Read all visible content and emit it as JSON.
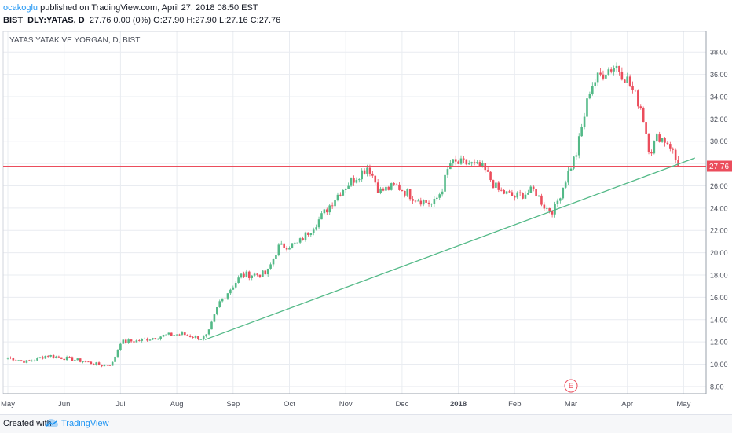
{
  "header": {
    "author": "ocakoglu",
    "published_text": "published on TradingView.com, April 27, 2018 08:50 EST",
    "symbol": "BIST_DLY:YATAS, D",
    "ohlc_text": "27.76 0.00 (0%) O:27.90 H:27.90 L:27.16 C:27.76"
  },
  "chart_label": "YATAS YATAK VE YORGAN, D, BIST",
  "price_tag": "27.76",
  "earnings_marker": "E",
  "footer": {
    "created_with": "Created with",
    "brand": "TradingView"
  },
  "colors": {
    "up": "#53b987",
    "down": "#eb4d5c",
    "trendline": "#53b987",
    "last_price": "#eb4d5c",
    "grid": "#e9ecf1"
  },
  "chart_data": {
    "type": "candlestick",
    "y_ticks": [
      8,
      10,
      12,
      14,
      16,
      18,
      20,
      22,
      24,
      26,
      28,
      30,
      32,
      34,
      36,
      38
    ],
    "y_tick_labels": [
      "8.00",
      "10.00",
      "12.00",
      "14.00",
      "16.00",
      "18.00",
      "20.00",
      "22.00",
      "24.00",
      "26.00",
      "28.00",
      "30.00",
      "32.00",
      "34.00",
      "36.00",
      "38.00"
    ],
    "ylim": [
      7.5,
      39
    ],
    "x_ticks": [
      "May",
      "Jun",
      "Jul",
      "Aug",
      "Sep",
      "Oct",
      "Nov",
      "Dec",
      "2018",
      "Feb",
      "Mar",
      "Apr",
      "May"
    ],
    "last_price": 27.76,
    "grid": true,
    "series": [
      {
        "name": "BIST_DLY:YATAS",
        "anchors": [
          {
            "month": 0,
            "close": 10.6
          },
          {
            "month": 0.35,
            "close": 10.2
          },
          {
            "month": 0.7,
            "close": 10.8
          },
          {
            "month": 1.3,
            "close": 10.3
          },
          {
            "month": 1.65,
            "close": 9.9
          },
          {
            "month": 1.85,
            "close": 10.0
          },
          {
            "month": 2.0,
            "close": 12.0
          },
          {
            "month": 2.3,
            "close": 12.1
          },
          {
            "month": 2.8,
            "close": 12.6
          },
          {
            "month": 3.1,
            "close": 12.7
          },
          {
            "month": 3.45,
            "close": 12.3
          },
          {
            "month": 3.55,
            "close": 12.6
          },
          {
            "month": 3.75,
            "close": 15.5
          },
          {
            "month": 4.15,
            "close": 18.0
          },
          {
            "month": 4.6,
            "close": 18.1
          },
          {
            "month": 4.8,
            "close": 20.5
          },
          {
            "month": 5.15,
            "close": 20.8
          },
          {
            "month": 5.5,
            "close": 22.8
          },
          {
            "month": 5.9,
            "close": 25.5
          },
          {
            "month": 6.4,
            "close": 27.8
          },
          {
            "month": 6.6,
            "close": 25.5
          },
          {
            "month": 6.9,
            "close": 26.0
          },
          {
            "month": 7.2,
            "close": 25.0
          },
          {
            "month": 7.55,
            "close": 24.3
          },
          {
            "month": 7.7,
            "close": 25.6
          },
          {
            "month": 7.85,
            "close": 28.0
          },
          {
            "month": 8.2,
            "close": 28.0
          },
          {
            "month": 8.45,
            "close": 27.5
          },
          {
            "month": 8.7,
            "close": 25.6
          },
          {
            "month": 9.0,
            "close": 25.0
          },
          {
            "month": 9.35,
            "close": 25.6
          },
          {
            "month": 9.55,
            "close": 24.0
          },
          {
            "month": 9.7,
            "close": 23.8
          },
          {
            "month": 9.95,
            "close": 27.2
          },
          {
            "month": 10.1,
            "close": 29.0
          },
          {
            "month": 10.35,
            "close": 35.0
          },
          {
            "month": 10.6,
            "close": 36.3
          },
          {
            "month": 10.8,
            "close": 36.8
          },
          {
            "month": 11.0,
            "close": 35.5
          },
          {
            "month": 11.25,
            "close": 33.0
          },
          {
            "month": 11.4,
            "close": 29.0
          },
          {
            "month": 11.55,
            "close": 30.5
          },
          {
            "month": 11.75,
            "close": 29.8
          },
          {
            "month": 11.9,
            "close": 27.76
          }
        ]
      }
    ],
    "trendline": {
      "start": {
        "month": 3.5,
        "value": 12.2
      },
      "end": {
        "month": 12.2,
        "value": 28.5
      }
    }
  }
}
